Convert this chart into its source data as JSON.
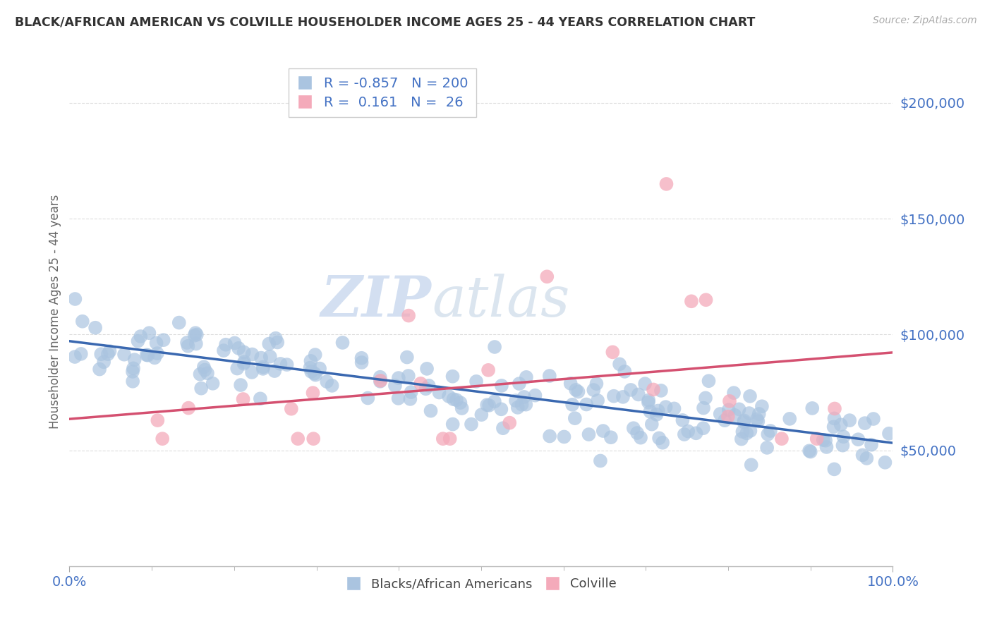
{
  "title": "BLACK/AFRICAN AMERICAN VS COLVILLE HOUSEHOLDER INCOME AGES 25 - 44 YEARS CORRELATION CHART",
  "source": "Source: ZipAtlas.com",
  "ylabel": "Householder Income Ages 25 - 44 years",
  "xlim": [
    0,
    1.0
  ],
  "ylim": [
    0,
    220000
  ],
  "yticks": [
    50000,
    100000,
    150000,
    200000
  ],
  "blue_scatter": {
    "R": -0.857,
    "N": 200,
    "color": "#aac4e0",
    "line_color": "#3a68b0",
    "label": "Blacks/African Americans"
  },
  "pink_scatter": {
    "R": 0.161,
    "N": 26,
    "color": "#f4aaba",
    "line_color": "#d45070",
    "label": "Colville"
  },
  "watermark_zip": "ZIP",
  "watermark_atlas": "atlas",
  "background_color": "#ffffff",
  "grid_color": "#dddddd",
  "title_color": "#333333",
  "axis_label_color": "#666666",
  "tick_label_color": "#4472c4",
  "seed": 99
}
